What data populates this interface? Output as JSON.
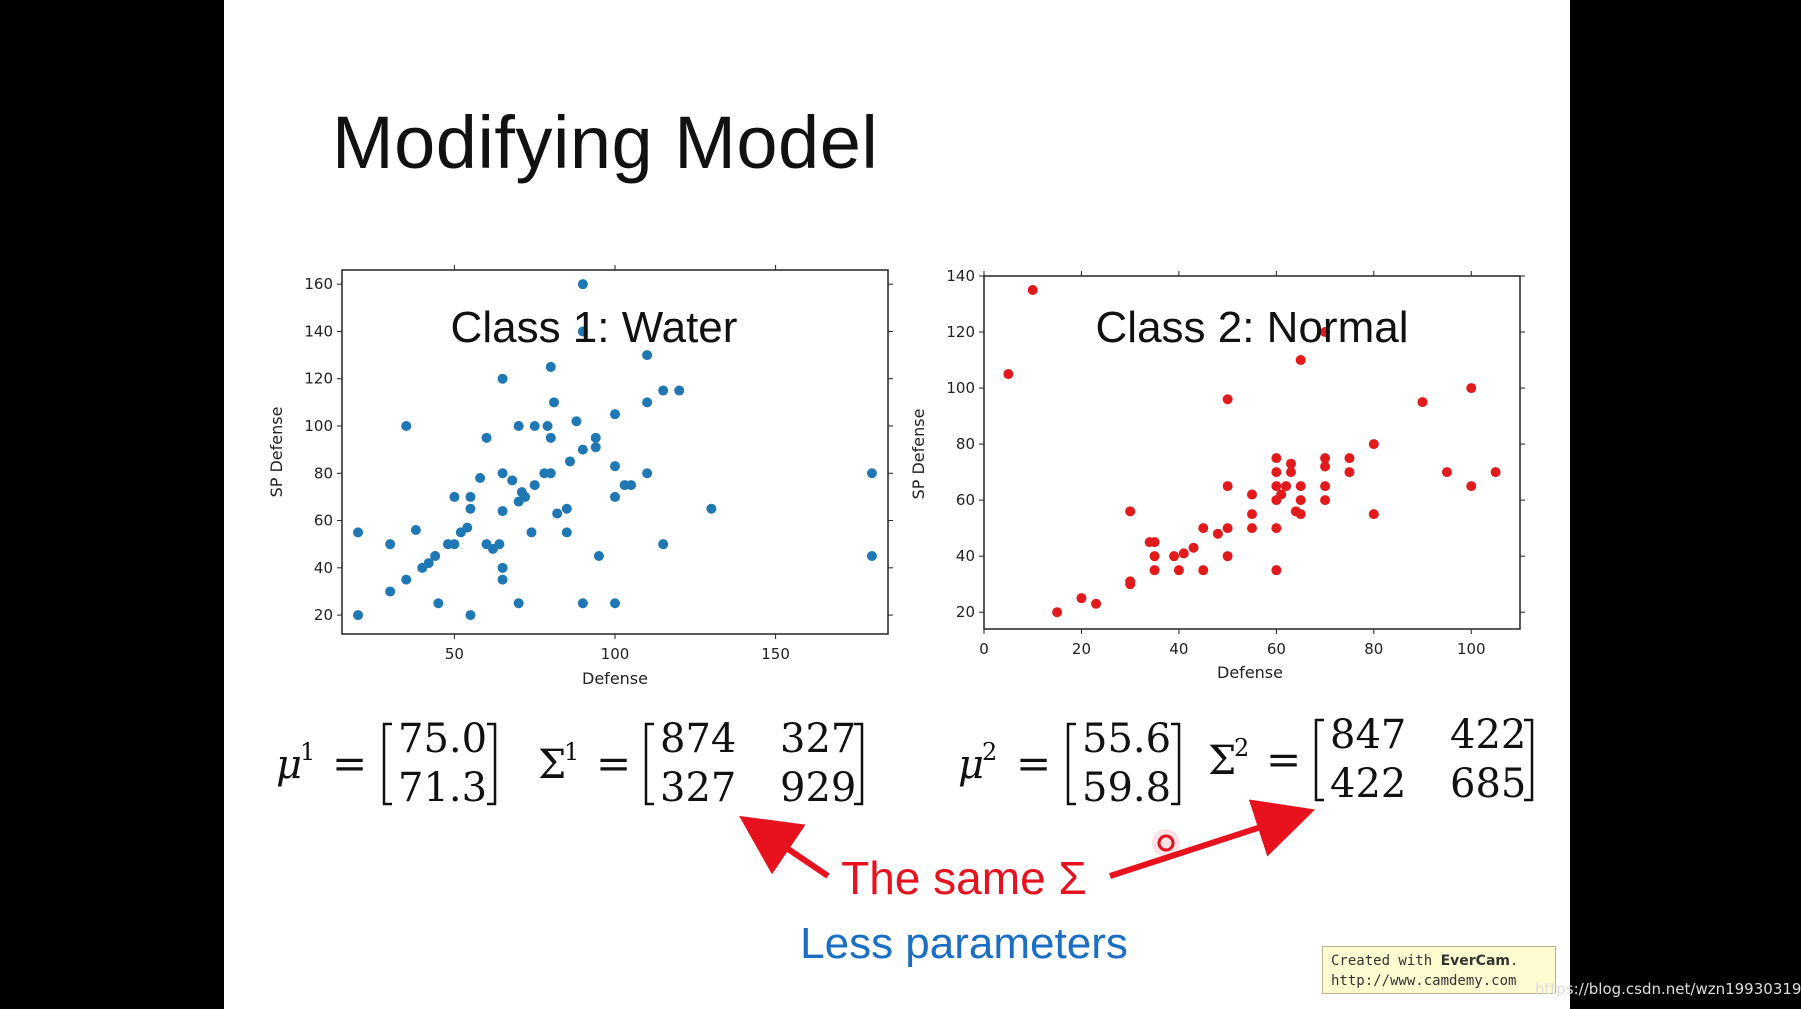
{
  "slide": {
    "title": "Modifying Model"
  },
  "chart_data": [
    {
      "type": "scatter",
      "title": "Class 1: Water",
      "xlabel": "Defense",
      "ylabel": "SP Defense",
      "color": "#1f77b4",
      "xlim": [
        15,
        185
      ],
      "ylim": [
        12,
        166
      ],
      "xticks": [
        50,
        100,
        150
      ],
      "yticks": [
        20,
        40,
        60,
        80,
        100,
        120,
        140,
        160
      ],
      "points": [
        [
          20,
          55
        ],
        [
          20,
          20
        ],
        [
          30,
          50
        ],
        [
          30,
          30
        ],
        [
          35,
          35
        ],
        [
          35,
          100
        ],
        [
          38,
          56
        ],
        [
          40,
          40
        ],
        [
          42,
          42
        ],
        [
          44,
          45
        ],
        [
          45,
          25
        ],
        [
          48,
          50
        ],
        [
          50,
          70
        ],
        [
          50,
          50
        ],
        [
          52,
          55
        ],
        [
          54,
          57
        ],
        [
          55,
          65
        ],
        [
          55,
          70
        ],
        [
          55,
          20
        ],
        [
          58,
          78
        ],
        [
          60,
          95
        ],
        [
          60,
          50
        ],
        [
          62,
          48
        ],
        [
          64,
          50
        ],
        [
          65,
          35
        ],
        [
          65,
          40
        ],
        [
          65,
          64
        ],
        [
          65,
          80
        ],
        [
          65,
          120
        ],
        [
          68,
          77
        ],
        [
          70,
          100
        ],
        [
          70,
          68
        ],
        [
          70,
          25
        ],
        [
          71,
          72
        ],
        [
          72,
          70
        ],
        [
          74,
          55
        ],
        [
          75,
          75
        ],
        [
          75,
          100
        ],
        [
          78,
          80
        ],
        [
          79,
          100
        ],
        [
          80,
          125
        ],
        [
          80,
          95
        ],
        [
          81,
          110
        ],
        [
          80,
          80
        ],
        [
          82,
          63
        ],
        [
          85,
          55
        ],
        [
          85,
          65
        ],
        [
          86,
          85
        ],
        [
          88,
          102
        ],
        [
          90,
          160
        ],
        [
          90,
          140
        ],
        [
          90,
          90
        ],
        [
          90,
          25
        ],
        [
          94,
          95
        ],
        [
          94,
          91
        ],
        [
          95,
          45
        ],
        [
          100,
          105
        ],
        [
          100,
          83
        ],
        [
          100,
          70
        ],
        [
          100,
          25
        ],
        [
          103,
          75
        ],
        [
          105,
          75
        ],
        [
          110,
          130
        ],
        [
          110,
          110
        ],
        [
          110,
          80
        ],
        [
          115,
          115
        ],
        [
          115,
          50
        ],
        [
          120,
          115
        ],
        [
          130,
          65
        ],
        [
          180,
          80
        ],
        [
          180,
          45
        ]
      ]
    },
    {
      "type": "scatter",
      "title": "Class 2: Normal",
      "xlabel": "Defense",
      "ylabel": "SP Defense",
      "color": "#e31a1c",
      "xlim": [
        0,
        110
      ],
      "ylim": [
        14,
        140
      ],
      "xticks": [
        0,
        20,
        40,
        60,
        80,
        100
      ],
      "yticks": [
        20,
        40,
        60,
        80,
        100,
        120,
        140
      ],
      "points": [
        [
          5,
          105
        ],
        [
          10,
          135
        ],
        [
          15,
          20
        ],
        [
          20,
          25
        ],
        [
          23,
          23
        ],
        [
          30,
          56
        ],
        [
          30,
          30
        ],
        [
          30,
          31
        ],
        [
          34,
          45
        ],
        [
          35,
          45
        ],
        [
          35,
          40
        ],
        [
          35,
          35
        ],
        [
          39,
          40
        ],
        [
          40,
          35
        ],
        [
          41,
          41
        ],
        [
          43,
          43
        ],
        [
          45,
          50
        ],
        [
          45,
          35
        ],
        [
          48,
          48
        ],
        [
          50,
          96
        ],
        [
          50,
          65
        ],
        [
          50,
          50
        ],
        [
          50,
          40
        ],
        [
          55,
          62
        ],
        [
          55,
          55
        ],
        [
          55,
          50
        ],
        [
          60,
          75
        ],
        [
          60,
          70
        ],
        [
          60,
          65
        ],
        [
          60,
          60
        ],
        [
          60,
          50
        ],
        [
          60,
          35
        ],
        [
          61,
          62
        ],
        [
          62,
          65
        ],
        [
          63,
          73
        ],
        [
          63,
          70
        ],
        [
          64,
          56
        ],
        [
          65,
          110
        ],
        [
          65,
          65
        ],
        [
          65,
          60
        ],
        [
          65,
          55
        ],
        [
          70,
          120
        ],
        [
          70,
          75
        ],
        [
          70,
          72
        ],
        [
          70,
          65
        ],
        [
          70,
          60
        ],
        [
          75,
          75
        ],
        [
          75,
          70
        ],
        [
          80,
          80
        ],
        [
          80,
          55
        ],
        [
          90,
          95
        ],
        [
          95,
          70
        ],
        [
          100,
          100
        ],
        [
          100,
          65
        ],
        [
          105,
          70
        ]
      ]
    }
  ],
  "formulas": {
    "mu1": {
      "symbol": "μ",
      "sup": "1",
      "eq": "=",
      "values": [
        "75.0",
        "71.3"
      ]
    },
    "sigma1": {
      "symbol": "Σ",
      "sup": "1",
      "eq": "=",
      "row1": [
        "874",
        "327"
      ],
      "row2": [
        "327",
        "929"
      ]
    },
    "mu2": {
      "symbol": "μ",
      "sup": "2",
      "eq": "=",
      "values": [
        "55.6",
        "59.8"
      ]
    },
    "sigma2": {
      "symbol": "Σ",
      "sup": "2",
      "eq": "=",
      "row1": [
        "847",
        "422"
      ],
      "row2": [
        "422",
        "685"
      ]
    }
  },
  "annotations": {
    "same_sigma": "The same Σ",
    "less_params": "Less parameters",
    "arrow_color": "#e8121e"
  },
  "watermark": {
    "line1_prefix": "Created with ",
    "line1_brand": "EverCam",
    "line1_suffix": ".",
    "line2": "http://www.camdemy.com",
    "url": "https://blog.csdn.net/wzn19930319"
  }
}
